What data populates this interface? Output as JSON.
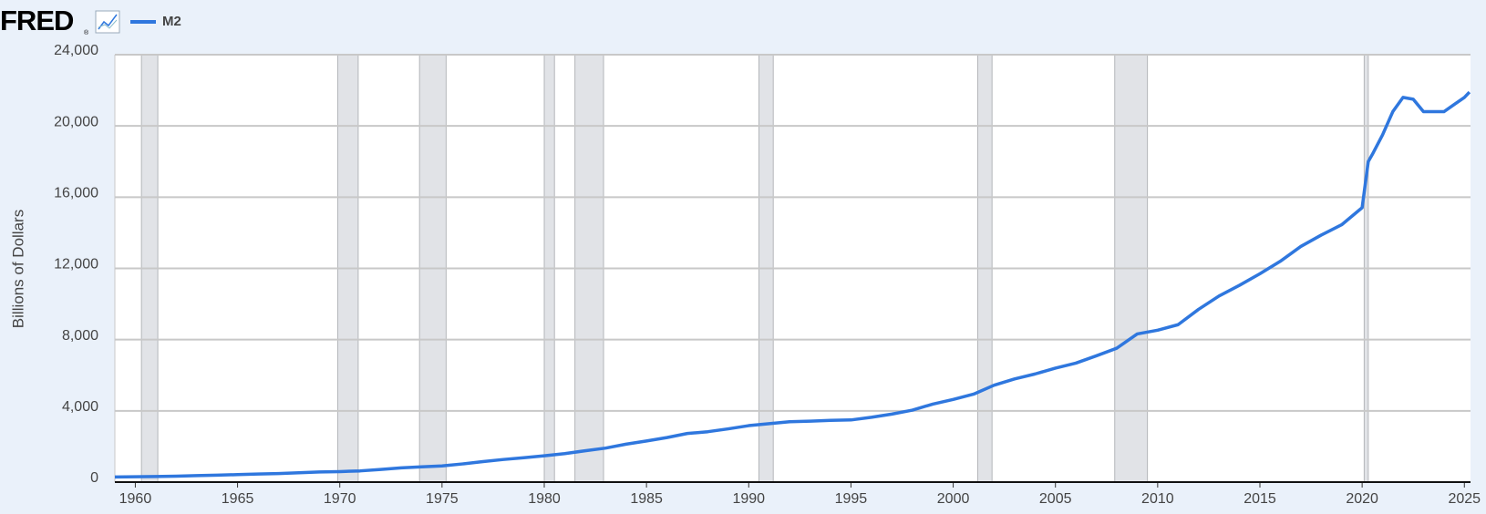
{
  "logo": "FRED",
  "chart_data": {
    "type": "line",
    "y_label": "Billions of Dollars",
    "x": [
      1959,
      1960,
      1961,
      1962,
      1963,
      1964,
      1965,
      1966,
      1967,
      1968,
      1969,
      1970,
      1971,
      1972,
      1973,
      1974,
      1975,
      1976,
      1977,
      1978,
      1979,
      1980,
      1981,
      1982,
      1983,
      1984,
      1985,
      1986,
      1987,
      1988,
      1989,
      1990,
      1991,
      1992,
      1993,
      1994,
      1995,
      1996,
      1997,
      1998,
      1999,
      2000,
      2001,
      2002,
      2003,
      2004,
      2005,
      2006,
      2007,
      2008,
      2009,
      2010,
      2011,
      2012,
      2013,
      2014,
      2015,
      2016,
      2017,
      2018,
      2019,
      2020,
      2020.3,
      2020.5,
      2021,
      2021.5,
      2022,
      2022.5,
      2023,
      2023.5,
      2024,
      2024.5,
      2025,
      2025.25
    ],
    "series": [
      {
        "name": "M2",
        "color": "#2f77de",
        "values": [
          290,
          300,
          315,
          335,
          365,
          390,
          420,
          455,
          480,
          525,
          570,
          590,
          630,
          710,
          800,
          860,
          910,
          1020,
          1150,
          1270,
          1370,
          1480,
          1600,
          1760,
          1910,
          2130,
          2310,
          2500,
          2730,
          2830,
          2990,
          3170,
          3280,
          3390,
          3420,
          3470,
          3490,
          3640,
          3820,
          4040,
          4380,
          4640,
          4940,
          5440,
          5790,
          6070,
          6400,
          6680,
          7090,
          7520,
          8320,
          8530,
          8840,
          9700,
          10450,
          11050,
          11700,
          12400,
          13230,
          13870,
          14450,
          15410,
          18000,
          18400,
          19500,
          20800,
          21600,
          21500,
          20800,
          20800,
          20800,
          21200,
          21600,
          21900
        ]
      }
    ],
    "recessions": [
      [
        1960.3,
        1961.1
      ],
      [
        1969.9,
        1970.9
      ],
      [
        1973.9,
        1975.2
      ],
      [
        1980.0,
        1980.5
      ],
      [
        1981.5,
        1982.9
      ],
      [
        1990.5,
        1991.2
      ],
      [
        2001.2,
        2001.9
      ],
      [
        2007.9,
        2009.5
      ],
      [
        2020.1,
        2020.3
      ]
    ],
    "xlim": [
      1959,
      2025.3
    ],
    "xticks": [
      1960,
      1965,
      1970,
      1975,
      1980,
      1985,
      1990,
      1995,
      2000,
      2005,
      2010,
      2015,
      2020,
      2025
    ],
    "ylim": [
      0,
      24000
    ],
    "yticks": [
      0,
      {
        "value": 4000,
        "label": "4,000"
      },
      {
        "value": 8000,
        "label": "8,000"
      },
      {
        "value": 12000,
        "label": "12,000"
      },
      {
        "value": 16000,
        "label": "16,000"
      },
      {
        "value": 20000,
        "label": "20,000"
      },
      {
        "value": 24000,
        "label": "24,000"
      }
    ],
    "grid": true
  }
}
